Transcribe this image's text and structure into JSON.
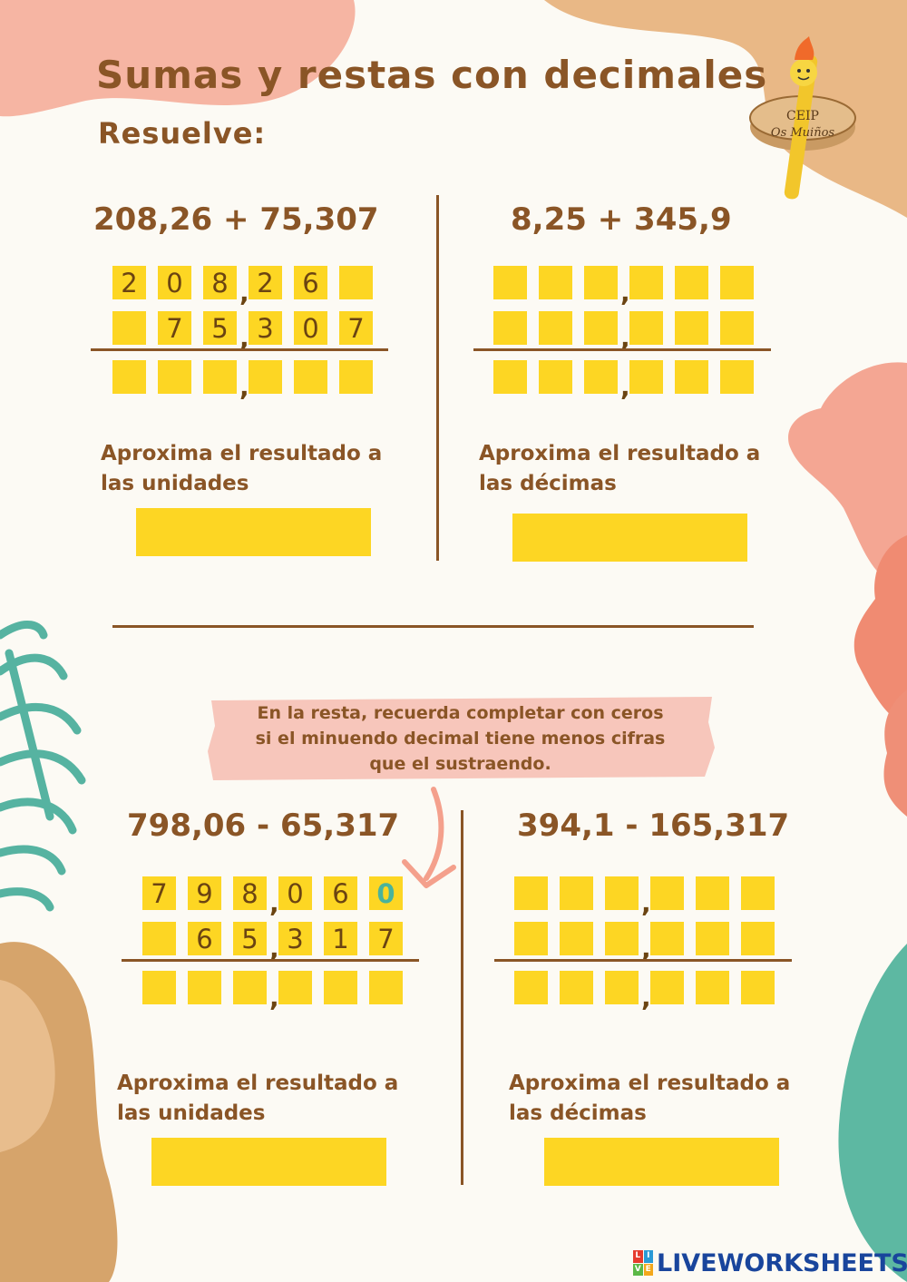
{
  "title": "Sumas y restas con decimales",
  "subtitle": "Resuelve:",
  "logo": {
    "top_text": "CEIP",
    "bottom_text": "Os Muiños"
  },
  "note": {
    "lines": [
      "En la resta, recuerda completar con ceros",
      "si el minuendo decimal tiene menos cifras",
      "que el sustraendo."
    ]
  },
  "exercises": [
    {
      "expression": "208,26 + 75,307",
      "rows": [
        [
          "2",
          "0",
          "8",
          "2",
          "6",
          ""
        ],
        [
          "",
          "7",
          "5",
          "3",
          "0",
          "7"
        ],
        [
          "",
          "",
          "",
          "",
          "",
          ""
        ]
      ],
      "approx": [
        "Aproxima el resultado a",
        "las unidades"
      ]
    },
    {
      "expression": "8,25 + 345,9",
      "rows": [
        [
          "",
          "",
          "",
          "",
          "",
          ""
        ],
        [
          "",
          "",
          "",
          "",
          "",
          ""
        ],
        [
          "",
          "",
          "",
          "",
          "",
          ""
        ]
      ],
      "approx": [
        "Aproxima el resultado a",
        "las décimas"
      ]
    },
    {
      "expression": "798,06 - 65,317",
      "rows": [
        [
          "7",
          "9",
          "8",
          "0",
          "6",
          "0"
        ],
        [
          "",
          "6",
          "5",
          "3",
          "1",
          "7"
        ],
        [
          "",
          "",
          "",
          "",
          "",
          ""
        ]
      ],
      "approx": [
        "Aproxima el resultado a",
        "las unidades"
      ]
    },
    {
      "expression": "394,1 - 165,317",
      "rows": [
        [
          "",
          "",
          "",
          "",
          "",
          ""
        ],
        [
          "",
          "",
          "",
          "",
          "",
          ""
        ],
        [
          "",
          "",
          "",
          "",
          "",
          ""
        ]
      ],
      "approx": [
        "Aproxima el resultado a",
        "las décimas"
      ]
    }
  ],
  "highlight_digit_color": "#4ab39b",
  "box_color": "#fdd623",
  "text_color": "#8a5526",
  "brand": {
    "letters": [
      "L",
      "I",
      "V",
      "E"
    ],
    "text": "LIVEWORKSHEETS"
  }
}
